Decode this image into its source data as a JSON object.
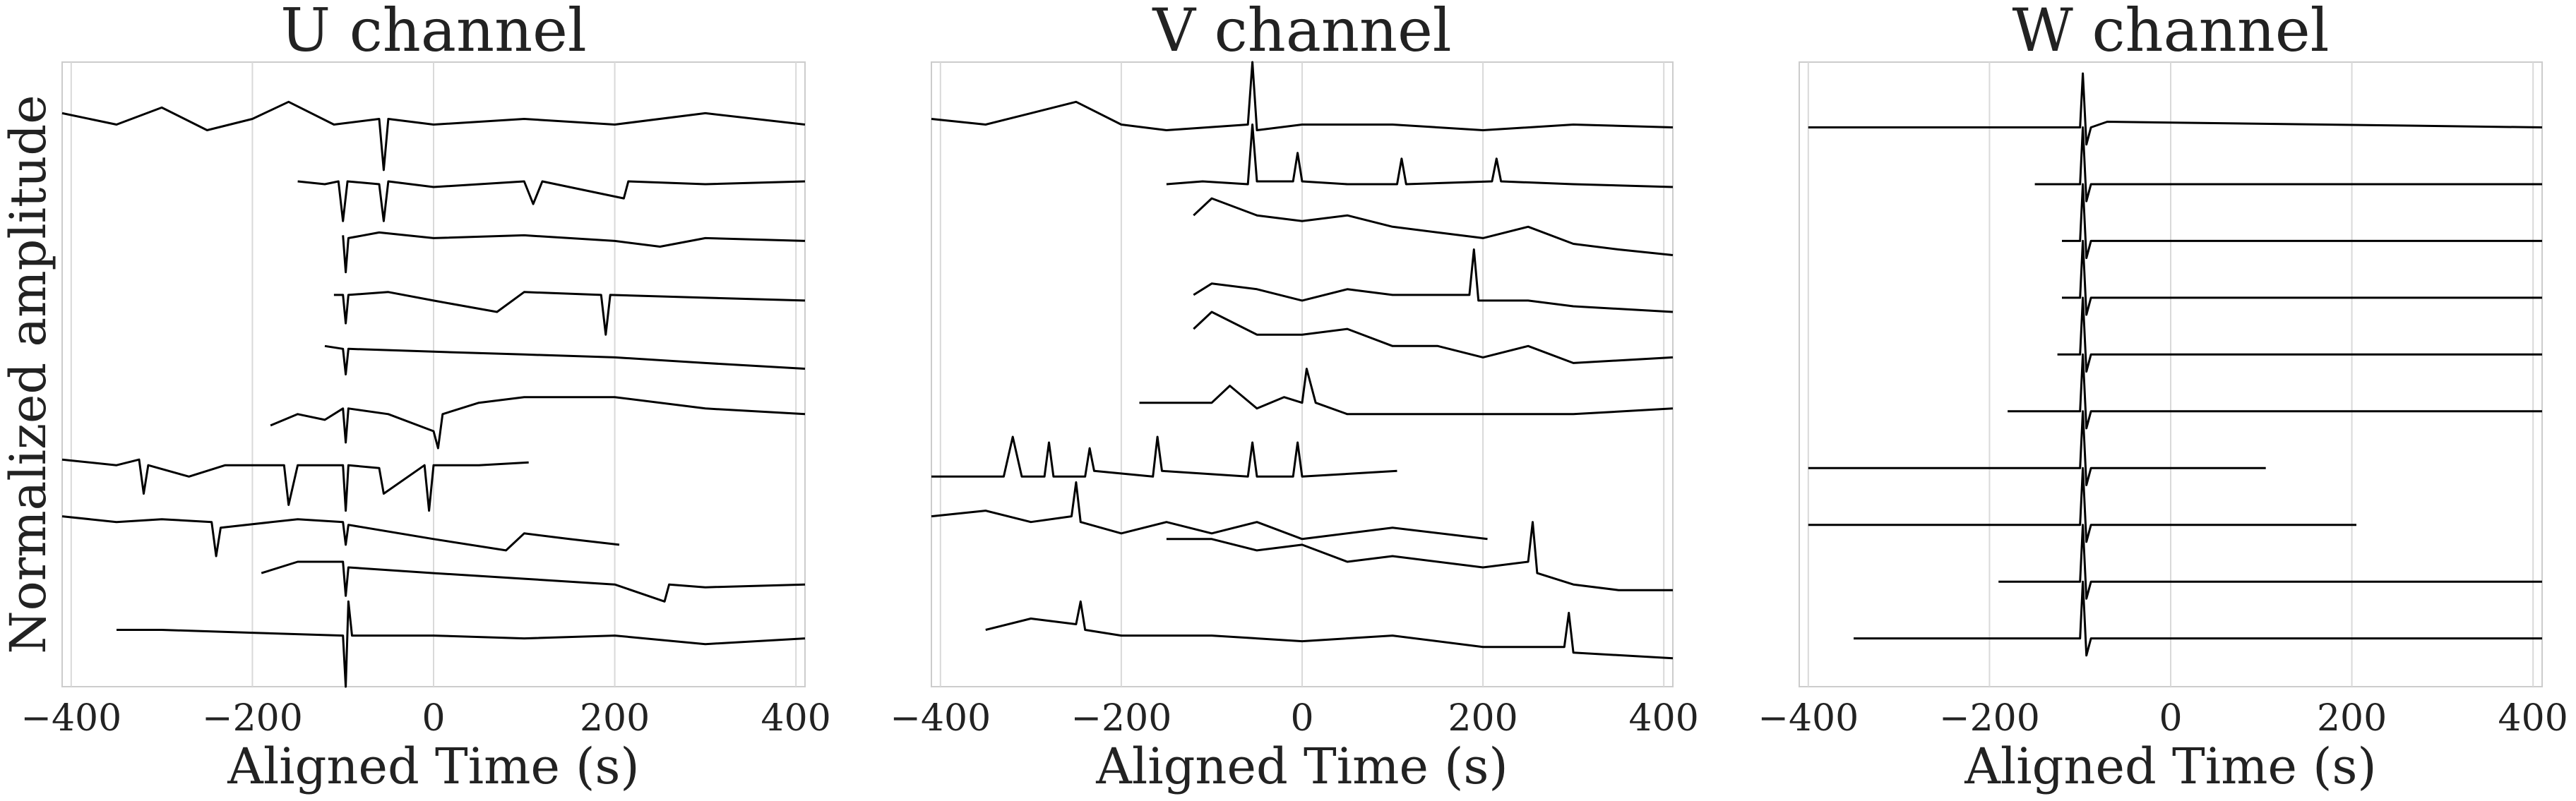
{
  "chart_data": [
    {
      "type": "line",
      "title": "U channel",
      "xlabel": "Aligned Time (s)",
      "ylabel": "Normalized amplitude",
      "color": "#000000",
      "grid": true,
      "xlim": [
        -410,
        410
      ],
      "ylim": [
        0,
        11
      ],
      "xticks": [
        {
          "value": -400,
          "label": "−400"
        },
        {
          "value": -200,
          "label": "−200"
        },
        0,
        200,
        400
      ],
      "series": [
        {
          "x": [
            -410,
            -350,
            -300,
            -250,
            -200,
            -160,
            -110,
            -60,
            -55,
            -50,
            0,
            100,
            200,
            300,
            410
          ],
          "values": [
            10.1,
            9.9,
            10.2,
            9.8,
            10.0,
            10.3,
            9.9,
            10.0,
            9.1,
            10.0,
            9.9,
            10.0,
            9.9,
            10.1,
            9.9
          ]
        },
        {
          "x": [
            -150,
            -120,
            -105,
            -100,
            -95,
            -60,
            -55,
            -50,
            0,
            100,
            110,
            120,
            210,
            215,
            300,
            410
          ],
          "values": [
            8.9,
            8.85,
            8.9,
            8.2,
            8.9,
            8.85,
            8.2,
            8.9,
            8.8,
            8.9,
            8.5,
            8.9,
            8.6,
            8.9,
            8.85,
            8.9
          ]
        },
        {
          "x": [
            -100,
            -97,
            -94,
            -60,
            0,
            100,
            200,
            250,
            300,
            410
          ],
          "values": [
            7.95,
            7.3,
            7.9,
            8.0,
            7.9,
            7.95,
            7.85,
            7.75,
            7.9,
            7.85
          ]
        },
        {
          "x": [
            -110,
            -100,
            -97,
            -94,
            -50,
            0,
            70,
            100,
            185,
            190,
            195,
            300,
            410
          ],
          "values": [
            6.9,
            6.9,
            6.4,
            6.9,
            6.95,
            6.8,
            6.6,
            6.95,
            6.9,
            6.2,
            6.9,
            6.85,
            6.8
          ]
        },
        {
          "x": [
            -120,
            -100,
            -97,
            -94,
            0,
            100,
            200,
            300,
            410
          ],
          "values": [
            6.0,
            5.95,
            5.5,
            5.95,
            5.9,
            5.85,
            5.8,
            5.7,
            5.6
          ]
        },
        {
          "x": [
            -180,
            -150,
            -120,
            -100,
            -97,
            -94,
            -50,
            0,
            5,
            10,
            50,
            100,
            200,
            300,
            410
          ],
          "values": [
            4.6,
            4.8,
            4.7,
            4.9,
            4.3,
            4.9,
            4.8,
            4.5,
            4.2,
            4.8,
            5.0,
            5.1,
            5.1,
            4.9,
            4.8
          ]
        },
        {
          "x": [
            -410,
            -350,
            -325,
            -320,
            -315,
            -270,
            -230,
            -165,
            -160,
            -150,
            -100,
            -97,
            -94,
            -60,
            -55,
            -10,
            -5,
            0,
            50,
            105
          ],
          "values": [
            4.0,
            3.9,
            4.0,
            3.4,
            3.9,
            3.7,
            3.9,
            3.9,
            3.2,
            3.9,
            3.9,
            3.1,
            3.9,
            3.85,
            3.4,
            3.9,
            3.1,
            3.9,
            3.9,
            3.95
          ]
        },
        {
          "x": [
            -410,
            -350,
            -300,
            -245,
            -240,
            -235,
            -150,
            -100,
            -97,
            -94,
            0,
            80,
            100,
            150,
            205
          ],
          "values": [
            3.0,
            2.9,
            2.95,
            2.9,
            2.3,
            2.8,
            2.95,
            2.9,
            2.5,
            2.85,
            2.6,
            2.4,
            2.7,
            2.6,
            2.5
          ]
        },
        {
          "x": [
            -190,
            -150,
            -100,
            -97,
            -94,
            0,
            100,
            200,
            255,
            260,
            300,
            410
          ],
          "values": [
            2.0,
            2.2,
            2.2,
            1.6,
            2.1,
            2.0,
            1.9,
            1.8,
            1.5,
            1.8,
            1.75,
            1.8
          ]
        },
        {
          "x": [
            -350,
            -300,
            -200,
            -100,
            -97,
            -94,
            -90,
            0,
            100,
            200,
            300,
            410
          ],
          "values": [
            1.0,
            1.0,
            0.95,
            0.9,
            0.0,
            1.5,
            0.9,
            0.9,
            0.85,
            0.9,
            0.75,
            0.85
          ]
        }
      ]
    },
    {
      "type": "line",
      "title": "V channel",
      "xlabel": "Aligned Time (s)",
      "color": "#000000",
      "grid": true,
      "xlim": [
        -410,
        410
      ],
      "ylim": [
        0,
        11
      ],
      "xticks": [
        {
          "value": -400,
          "label": "−400"
        },
        {
          "value": -200,
          "label": "−200"
        },
        0,
        200,
        400
      ],
      "series": [
        {
          "x": [
            -410,
            -350,
            -300,
            -250,
            -200,
            -150,
            -60,
            -55,
            -50,
            0,
            100,
            200,
            300,
            410
          ],
          "values": [
            10.0,
            9.9,
            10.1,
            10.3,
            9.9,
            9.8,
            9.9,
            11.0,
            9.8,
            9.9,
            9.9,
            9.8,
            9.9,
            9.85
          ]
        },
        {
          "x": [
            -150,
            -110,
            -60,
            -55,
            -50,
            -10,
            -5,
            0,
            50,
            105,
            110,
            115,
            210,
            215,
            220,
            300,
            410
          ],
          "values": [
            8.85,
            8.9,
            8.85,
            9.9,
            8.9,
            8.9,
            9.4,
            8.9,
            8.85,
            8.85,
            9.3,
            8.85,
            8.9,
            9.3,
            8.9,
            8.85,
            8.8
          ]
        },
        {
          "x": [
            -120,
            -100,
            -50,
            0,
            50,
            100,
            150,
            200,
            250,
            300,
            350,
            410
          ],
          "values": [
            8.3,
            8.6,
            8.3,
            8.2,
            8.3,
            8.1,
            8.0,
            7.9,
            8.1,
            7.8,
            7.7,
            7.6
          ]
        },
        {
          "x": [
            -120,
            -100,
            -50,
            0,
            50,
            100,
            185,
            190,
            195,
            250,
            300,
            410
          ],
          "values": [
            6.9,
            7.1,
            7.0,
            6.8,
            7.0,
            6.9,
            6.9,
            7.7,
            6.8,
            6.8,
            6.7,
            6.6
          ]
        },
        {
          "x": [
            -120,
            -100,
            -50,
            0,
            50,
            100,
            150,
            200,
            250,
            300,
            410
          ],
          "values": [
            6.3,
            6.6,
            6.2,
            6.2,
            6.3,
            6.0,
            6.0,
            5.8,
            6.0,
            5.7,
            5.8
          ]
        },
        {
          "x": [
            -180,
            -100,
            -80,
            -50,
            -20,
            0,
            5,
            15,
            50,
            100,
            200,
            300,
            410
          ],
          "values": [
            5.0,
            5.0,
            5.3,
            4.9,
            5.1,
            5.0,
            5.6,
            5.0,
            4.8,
            4.8,
            4.8,
            4.8,
            4.9
          ]
        },
        {
          "x": [
            -410,
            -330,
            -320,
            -310,
            -285,
            -280,
            -275,
            -240,
            -235,
            -230,
            -165,
            -160,
            -155,
            -60,
            -55,
            -50,
            -10,
            -5,
            0,
            105
          ],
          "values": [
            3.7,
            3.7,
            4.4,
            3.7,
            3.7,
            4.3,
            3.7,
            3.7,
            4.2,
            3.8,
            3.7,
            4.4,
            3.8,
            3.7,
            4.3,
            3.7,
            3.7,
            4.3,
            3.7,
            3.8
          ]
        },
        {
          "x": [
            -410,
            -350,
            -300,
            -255,
            -250,
            -245,
            -200,
            -150,
            -100,
            -50,
            0,
            100,
            205
          ],
          "values": [
            3.0,
            3.1,
            2.9,
            3.0,
            3.6,
            2.9,
            2.7,
            2.9,
            2.7,
            2.9,
            2.6,
            2.8,
            2.6
          ]
        },
        {
          "x": [
            -150,
            -100,
            -50,
            0,
            50,
            100,
            200,
            250,
            255,
            260,
            300,
            350,
            410
          ],
          "values": [
            2.6,
            2.6,
            2.4,
            2.5,
            2.2,
            2.3,
            2.1,
            2.2,
            2.9,
            2.0,
            1.8,
            1.7,
            1.7
          ]
        },
        {
          "x": [
            -350,
            -300,
            -250,
            -245,
            -240,
            -200,
            -100,
            0,
            100,
            200,
            290,
            295,
            300,
            410
          ],
          "values": [
            1.0,
            1.2,
            1.1,
            1.5,
            1.0,
            0.9,
            0.9,
            0.8,
            0.9,
            0.7,
            0.7,
            1.3,
            0.6,
            0.5
          ]
        }
      ]
    },
    {
      "type": "line",
      "title": "W channel",
      "xlabel": "Aligned Time (s)",
      "color": "#000000",
      "grid": true,
      "xlim": [
        -410,
        410
      ],
      "ylim": [
        0,
        11
      ],
      "xticks": [
        {
          "value": -400,
          "label": "−400"
        },
        {
          "value": -200,
          "label": "−200"
        },
        0,
        200,
        400
      ],
      "series": [
        {
          "x": [
            -400,
            -100,
            -97,
            -93,
            -88,
            -70,
            410
          ],
          "values": [
            9.85,
            9.85,
            10.8,
            9.55,
            9.85,
            9.95,
            9.85
          ]
        },
        {
          "x": [
            -150,
            -100,
            -97,
            -93,
            -88,
            410
          ],
          "values": [
            8.85,
            8.85,
            9.85,
            8.55,
            8.85,
            8.85
          ]
        },
        {
          "x": [
            -120,
            -100,
            -97,
            -93,
            -88,
            410
          ],
          "values": [
            7.85,
            7.85,
            8.85,
            7.55,
            7.85,
            7.85
          ]
        },
        {
          "x": [
            -120,
            -100,
            -97,
            -93,
            -88,
            410
          ],
          "values": [
            6.85,
            6.85,
            7.85,
            6.55,
            6.85,
            6.85
          ]
        },
        {
          "x": [
            -125,
            -100,
            -97,
            -93,
            -88,
            410
          ],
          "values": [
            5.85,
            5.85,
            6.85,
            5.55,
            5.85,
            5.85
          ]
        },
        {
          "x": [
            -180,
            -100,
            -97,
            -93,
            -88,
            410
          ],
          "values": [
            4.85,
            4.85,
            5.85,
            4.55,
            4.85,
            4.85
          ]
        },
        {
          "x": [
            -400,
            -100,
            -97,
            -93,
            -88,
            105
          ],
          "values": [
            3.85,
            3.85,
            4.85,
            3.55,
            3.85,
            3.85
          ]
        },
        {
          "x": [
            -400,
            -100,
            -97,
            -93,
            -88,
            205
          ],
          "values": [
            2.85,
            2.85,
            3.85,
            2.55,
            2.85,
            2.85
          ]
        },
        {
          "x": [
            -190,
            -100,
            -97,
            -93,
            -88,
            410
          ],
          "values": [
            1.85,
            1.85,
            2.85,
            1.55,
            1.85,
            1.85
          ]
        },
        {
          "x": [
            -350,
            -100,
            -97,
            -93,
            -88,
            410
          ],
          "values": [
            0.85,
            0.85,
            1.85,
            0.55,
            0.85,
            0.85
          ]
        }
      ]
    }
  ]
}
